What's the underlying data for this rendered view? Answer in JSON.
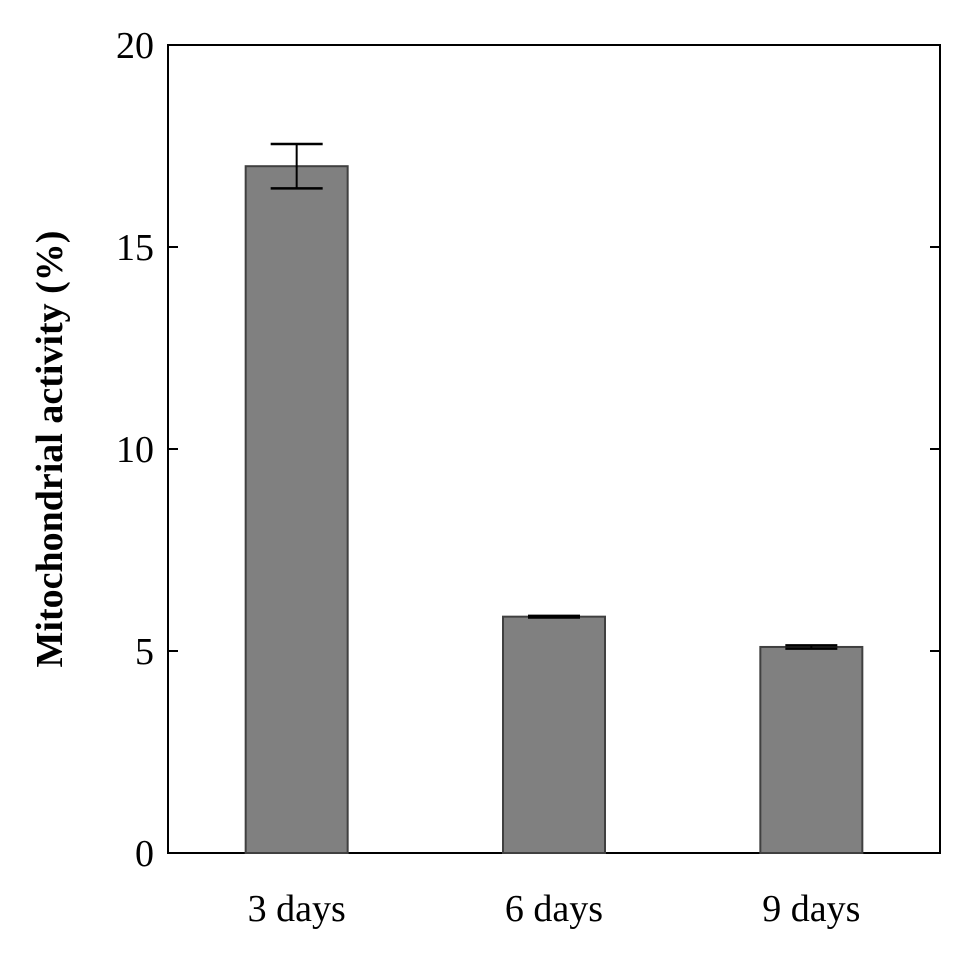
{
  "chart_data": {
    "type": "bar",
    "title": "",
    "xlabel": "",
    "ylabel": "Mitochondrial activity (%)",
    "categories": [
      "3 days",
      "6 days",
      "9 days"
    ],
    "values": [
      17.0,
      5.85,
      5.1
    ],
    "error": [
      0.55,
      0.02,
      0.04
    ],
    "ylim": [
      0,
      20
    ],
    "yticks": [
      "0",
      "5",
      "10",
      "15",
      "20"
    ],
    "grid": false,
    "legend": "none",
    "bar_color": "#808080",
    "bar_edge_color": "#404040"
  }
}
